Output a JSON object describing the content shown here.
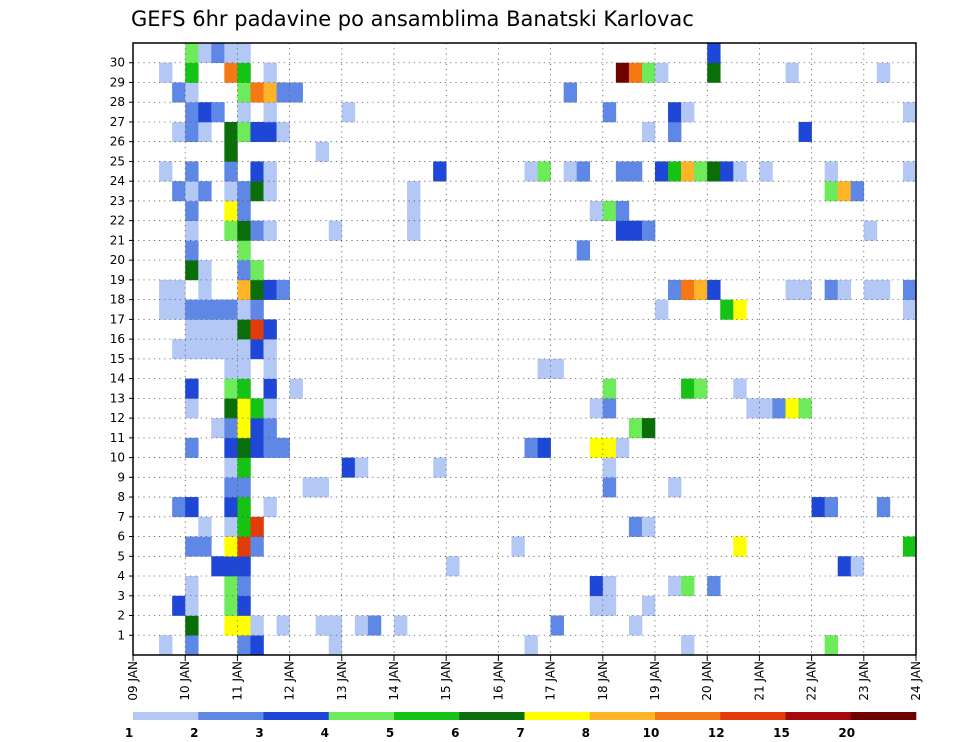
{
  "chart_data": {
    "type": "heatmap",
    "title": "GEFS 6hr padavine po ansamblima Banatski Karlovac",
    "xlabel": "",
    "ylabel": "",
    "x_tick_labels": [
      "09 JAN",
      "10 JAN",
      "11 JAN",
      "12 JAN",
      "13 JAN",
      "14 JAN",
      "15 JAN",
      "16 JAN",
      "17 JAN",
      "18 JAN",
      "19 JAN",
      "20 JAN",
      "21 JAN",
      "22 JAN",
      "23 JAN",
      "24 JAN"
    ],
    "y_tick_labels": [
      "1",
      "2",
      "3",
      "4",
      "5",
      "6",
      "7",
      "8",
      "9",
      "10",
      "11",
      "12",
      "13",
      "14",
      "15",
      "16",
      "17",
      "18",
      "19",
      "20",
      "21",
      "22",
      "23",
      "24",
      "25",
      "26",
      "27",
      "28",
      "29",
      "30"
    ],
    "time_steps_per_day": 4,
    "grid": true,
    "colorbar": {
      "placement": "bottom",
      "levels": [
        "1",
        "2",
        "3",
        "4",
        "5",
        "6",
        "7",
        "8",
        "10",
        "12",
        "15",
        "20"
      ],
      "colors": [
        "#b4c8f5",
        "#5f87e6",
        "#1e46d7",
        "#6eeb5a",
        "#14c314",
        "#0a6e0a",
        "#ffff00",
        "#ffb428",
        "#f57814",
        "#e13c0a",
        "#a50a0a",
        "#6e0000"
      ]
    },
    "cells": [
      {
        "m": 0,
        "t": 2,
        "c": 0
      },
      {
        "m": 0,
        "t": 4,
        "c": 1
      },
      {
        "m": 0,
        "t": 8,
        "c": 1
      },
      {
        "m": 0,
        "t": 9,
        "c": 2
      },
      {
        "m": 0,
        "t": 15,
        "c": 0
      },
      {
        "m": 0,
        "t": 30,
        "c": 0
      },
      {
        "m": 0,
        "t": 42,
        "c": 0
      },
      {
        "m": 0,
        "t": 53,
        "c": 3
      },
      {
        "m": 0,
        "t": 66,
        "c": 0
      },
      {
        "m": 0,
        "t": 69,
        "c": 0
      },
      {
        "m": 1,
        "t": 4,
        "c": 5
      },
      {
        "m": 1,
        "t": 7,
        "c": 6
      },
      {
        "m": 1,
        "t": 8,
        "c": 6
      },
      {
        "m": 1,
        "t": 9,
        "c": 0
      },
      {
        "m": 1,
        "t": 11,
        "c": 0
      },
      {
        "m": 1,
        "t": 14,
        "c": 0
      },
      {
        "m": 1,
        "t": 15,
        "c": 0
      },
      {
        "m": 1,
        "t": 17,
        "c": 0
      },
      {
        "m": 1,
        "t": 18,
        "c": 1
      },
      {
        "m": 1,
        "t": 20,
        "c": 0
      },
      {
        "m": 1,
        "t": 32,
        "c": 1
      },
      {
        "m": 1,
        "t": 38,
        "c": 0
      },
      {
        "m": 2,
        "t": 3,
        "c": 2
      },
      {
        "m": 2,
        "t": 4,
        "c": 0
      },
      {
        "m": 2,
        "t": 7,
        "c": 3
      },
      {
        "m": 2,
        "t": 8,
        "c": 2
      },
      {
        "m": 2,
        "t": 35,
        "c": 0
      },
      {
        "m": 2,
        "t": 36,
        "c": 0
      },
      {
        "m": 2,
        "t": 39,
        "c": 0
      },
      {
        "m": 3,
        "t": 4,
        "c": 0
      },
      {
        "m": 3,
        "t": 7,
        "c": 3
      },
      {
        "m": 3,
        "t": 8,
        "c": 1
      },
      {
        "m": 3,
        "t": 35,
        "c": 2
      },
      {
        "m": 3,
        "t": 36,
        "c": 0
      },
      {
        "m": 3,
        "t": 41,
        "c": 0
      },
      {
        "m": 3,
        "t": 42,
        "c": 3
      },
      {
        "m": 3,
        "t": 44,
        "c": 1
      },
      {
        "m": 4,
        "t": 6,
        "c": 2
      },
      {
        "m": 4,
        "t": 7,
        "c": 2
      },
      {
        "m": 4,
        "t": 8,
        "c": 2
      },
      {
        "m": 4,
        "t": 24,
        "c": 0
      },
      {
        "m": 4,
        "t": 54,
        "c": 2
      },
      {
        "m": 4,
        "t": 55,
        "c": 0
      },
      {
        "m": 5,
        "t": 4,
        "c": 1
      },
      {
        "m": 5,
        "t": 5,
        "c": 1
      },
      {
        "m": 5,
        "t": 7,
        "c": 6
      },
      {
        "m": 5,
        "t": 8,
        "c": 9
      },
      {
        "m": 5,
        "t": 9,
        "c": 1
      },
      {
        "m": 5,
        "t": 29,
        "c": 0
      },
      {
        "m": 5,
        "t": 46,
        "c": 6
      },
      {
        "m": 5,
        "t": 59,
        "c": 4
      },
      {
        "m": 6,
        "t": 5,
        "c": 0
      },
      {
        "m": 6,
        "t": 7,
        "c": 0
      },
      {
        "m": 6,
        "t": 8,
        "c": 4
      },
      {
        "m": 6,
        "t": 9,
        "c": 9
      },
      {
        "m": 6,
        "t": 38,
        "c": 1
      },
      {
        "m": 6,
        "t": 39,
        "c": 0
      },
      {
        "m": 7,
        "t": 3,
        "c": 1
      },
      {
        "m": 7,
        "t": 4,
        "c": 2
      },
      {
        "m": 7,
        "t": 7,
        "c": 2
      },
      {
        "m": 7,
        "t": 8,
        "c": 4
      },
      {
        "m": 7,
        "t": 10,
        "c": 0
      },
      {
        "m": 7,
        "t": 52,
        "c": 2
      },
      {
        "m": 7,
        "t": 53,
        "c": 1
      },
      {
        "m": 7,
        "t": 57,
        "c": 1
      },
      {
        "m": 8,
        "t": 7,
        "c": 1
      },
      {
        "m": 8,
        "t": 8,
        "c": 1
      },
      {
        "m": 8,
        "t": 13,
        "c": 0
      },
      {
        "m": 8,
        "t": 14,
        "c": 0
      },
      {
        "m": 8,
        "t": 36,
        "c": 1
      },
      {
        "m": 8,
        "t": 41,
        "c": 0
      },
      {
        "m": 9,
        "t": 7,
        "c": 0
      },
      {
        "m": 9,
        "t": 8,
        "c": 4
      },
      {
        "m": 9,
        "t": 16,
        "c": 2
      },
      {
        "m": 9,
        "t": 17,
        "c": 0
      },
      {
        "m": 9,
        "t": 23,
        "c": 0
      },
      {
        "m": 9,
        "t": 36,
        "c": 0
      },
      {
        "m": 10,
        "t": 4,
        "c": 1
      },
      {
        "m": 10,
        "t": 7,
        "c": 2
      },
      {
        "m": 10,
        "t": 8,
        "c": 5
      },
      {
        "m": 10,
        "t": 9,
        "c": 2
      },
      {
        "m": 10,
        "t": 10,
        "c": 1
      },
      {
        "m": 10,
        "t": 11,
        "c": 1
      },
      {
        "m": 10,
        "t": 30,
        "c": 1
      },
      {
        "m": 10,
        "t": 31,
        "c": 2
      },
      {
        "m": 10,
        "t": 35,
        "c": 6
      },
      {
        "m": 10,
        "t": 36,
        "c": 6
      },
      {
        "m": 10,
        "t": 37,
        "c": 0
      },
      {
        "m": 11,
        "t": 6,
        "c": 0
      },
      {
        "m": 11,
        "t": 7,
        "c": 1
      },
      {
        "m": 11,
        "t": 8,
        "c": 6
      },
      {
        "m": 11,
        "t": 9,
        "c": 2
      },
      {
        "m": 11,
        "t": 10,
        "c": 1
      },
      {
        "m": 11,
        "t": 38,
        "c": 3
      },
      {
        "m": 11,
        "t": 39,
        "c": 5
      },
      {
        "m": 12,
        "t": 4,
        "c": 0
      },
      {
        "m": 12,
        "t": 7,
        "c": 5
      },
      {
        "m": 12,
        "t": 8,
        "c": 6
      },
      {
        "m": 12,
        "t": 9,
        "c": 4
      },
      {
        "m": 12,
        "t": 10,
        "c": 0
      },
      {
        "m": 12,
        "t": 35,
        "c": 0
      },
      {
        "m": 12,
        "t": 36,
        "c": 1
      },
      {
        "m": 12,
        "t": 47,
        "c": 0
      },
      {
        "m": 12,
        "t": 48,
        "c": 0
      },
      {
        "m": 12,
        "t": 49,
        "c": 1
      },
      {
        "m": 12,
        "t": 50,
        "c": 6
      },
      {
        "m": 12,
        "t": 51,
        "c": 3
      },
      {
        "m": 13,
        "t": 4,
        "c": 2
      },
      {
        "m": 13,
        "t": 7,
        "c": 3
      },
      {
        "m": 13,
        "t": 8,
        "c": 4
      },
      {
        "m": 13,
        "t": 10,
        "c": 2
      },
      {
        "m": 13,
        "t": 12,
        "c": 0
      },
      {
        "m": 13,
        "t": 36,
        "c": 3
      },
      {
        "m": 13,
        "t": 42,
        "c": 4
      },
      {
        "m": 13,
        "t": 43,
        "c": 3
      },
      {
        "m": 13,
        "t": 46,
        "c": 0
      },
      {
        "m": 14,
        "t": 7,
        "c": 0
      },
      {
        "m": 14,
        "t": 8,
        "c": 0
      },
      {
        "m": 14,
        "t": 10,
        "c": 0
      },
      {
        "m": 14,
        "t": 31,
        "c": 0
      },
      {
        "m": 14,
        "t": 32,
        "c": 0
      },
      {
        "m": 15,
        "t": 3,
        "c": 0
      },
      {
        "m": 15,
        "t": 4,
        "c": 0
      },
      {
        "m": 15,
        "t": 5,
        "c": 0
      },
      {
        "m": 15,
        "t": 6,
        "c": 0
      },
      {
        "m": 15,
        "t": 7,
        "c": 0
      },
      {
        "m": 15,
        "t": 8,
        "c": 0
      },
      {
        "m": 15,
        "t": 9,
        "c": 2
      },
      {
        "m": 15,
        "t": 10,
        "c": 0
      },
      {
        "m": 16,
        "t": 4,
        "c": 0
      },
      {
        "m": 16,
        "t": 5,
        "c": 0
      },
      {
        "m": 16,
        "t": 6,
        "c": 0
      },
      {
        "m": 16,
        "t": 7,
        "c": 0
      },
      {
        "m": 16,
        "t": 8,
        "c": 5
      },
      {
        "m": 16,
        "t": 9,
        "c": 9
      },
      {
        "m": 16,
        "t": 10,
        "c": 2
      },
      {
        "m": 17,
        "t": 2,
        "c": 0
      },
      {
        "m": 17,
        "t": 3,
        "c": 0
      },
      {
        "m": 17,
        "t": 4,
        "c": 1
      },
      {
        "m": 17,
        "t": 5,
        "c": 1
      },
      {
        "m": 17,
        "t": 6,
        "c": 1
      },
      {
        "m": 17,
        "t": 7,
        "c": 1
      },
      {
        "m": 17,
        "t": 8,
        "c": 0
      },
      {
        "m": 17,
        "t": 9,
        "c": 1
      },
      {
        "m": 17,
        "t": 40,
        "c": 0
      },
      {
        "m": 17,
        "t": 45,
        "c": 4
      },
      {
        "m": 17,
        "t": 46,
        "c": 6
      },
      {
        "m": 17,
        "t": 59,
        "c": 0
      },
      {
        "m": 18,
        "t": 2,
        "c": 0
      },
      {
        "m": 18,
        "t": 3,
        "c": 0
      },
      {
        "m": 18,
        "t": 5,
        "c": 0
      },
      {
        "m": 18,
        "t": 8,
        "c": 7
      },
      {
        "m": 18,
        "t": 9,
        "c": 5
      },
      {
        "m": 18,
        "t": 10,
        "c": 2
      },
      {
        "m": 18,
        "t": 11,
        "c": 1
      },
      {
        "m": 18,
        "t": 41,
        "c": 1
      },
      {
        "m": 18,
        "t": 42,
        "c": 8
      },
      {
        "m": 18,
        "t": 43,
        "c": 7
      },
      {
        "m": 18,
        "t": 44,
        "c": 2
      },
      {
        "m": 18,
        "t": 50,
        "c": 0
      },
      {
        "m": 18,
        "t": 51,
        "c": 0
      },
      {
        "m": 18,
        "t": 53,
        "c": 1
      },
      {
        "m": 18,
        "t": 54,
        "c": 0
      },
      {
        "m": 18,
        "t": 56,
        "c": 0
      },
      {
        "m": 18,
        "t": 57,
        "c": 0
      },
      {
        "m": 18,
        "t": 59,
        "c": 1
      },
      {
        "m": 19,
        "t": 4,
        "c": 5
      },
      {
        "m": 19,
        "t": 5,
        "c": 0
      },
      {
        "m": 19,
        "t": 8,
        "c": 1
      },
      {
        "m": 19,
        "t": 9,
        "c": 3
      },
      {
        "m": 20,
        "t": 4,
        "c": 1
      },
      {
        "m": 20,
        "t": 8,
        "c": 3
      },
      {
        "m": 20,
        "t": 34,
        "c": 1
      },
      {
        "m": 21,
        "t": 4,
        "c": 0
      },
      {
        "m": 21,
        "t": 7,
        "c": 3
      },
      {
        "m": 21,
        "t": 8,
        "c": 5
      },
      {
        "m": 21,
        "t": 9,
        "c": 1
      },
      {
        "m": 21,
        "t": 10,
        "c": 0
      },
      {
        "m": 21,
        "t": 15,
        "c": 0
      },
      {
        "m": 21,
        "t": 21,
        "c": 0
      },
      {
        "m": 21,
        "t": 37,
        "c": 2
      },
      {
        "m": 21,
        "t": 38,
        "c": 2
      },
      {
        "m": 21,
        "t": 39,
        "c": 1
      },
      {
        "m": 21,
        "t": 56,
        "c": 0
      },
      {
        "m": 22,
        "t": 4,
        "c": 1
      },
      {
        "m": 22,
        "t": 7,
        "c": 6
      },
      {
        "m": 22,
        "t": 8,
        "c": 1
      },
      {
        "m": 22,
        "t": 21,
        "c": 0
      },
      {
        "m": 22,
        "t": 35,
        "c": 0
      },
      {
        "m": 22,
        "t": 36,
        "c": 3
      },
      {
        "m": 22,
        "t": 37,
        "c": 1
      },
      {
        "m": 23,
        "t": 3,
        "c": 1
      },
      {
        "m": 23,
        "t": 4,
        "c": 0
      },
      {
        "m": 23,
        "t": 5,
        "c": 1
      },
      {
        "m": 23,
        "t": 7,
        "c": 0
      },
      {
        "m": 23,
        "t": 8,
        "c": 1
      },
      {
        "m": 23,
        "t": 9,
        "c": 5
      },
      {
        "m": 23,
        "t": 10,
        "c": 0
      },
      {
        "m": 23,
        "t": 21,
        "c": 0
      },
      {
        "m": 23,
        "t": 53,
        "c": 3
      },
      {
        "m": 23,
        "t": 54,
        "c": 7
      },
      {
        "m": 23,
        "t": 55,
        "c": 1
      },
      {
        "m": 24,
        "t": 2,
        "c": 0
      },
      {
        "m": 24,
        "t": 4,
        "c": 1
      },
      {
        "m": 24,
        "t": 7,
        "c": 1
      },
      {
        "m": 24,
        "t": 9,
        "c": 2
      },
      {
        "m": 24,
        "t": 10,
        "c": 0
      },
      {
        "m": 24,
        "t": 23,
        "c": 2
      },
      {
        "m": 24,
        "t": 30,
        "c": 0
      },
      {
        "m": 24,
        "t": 31,
        "c": 3
      },
      {
        "m": 24,
        "t": 33,
        "c": 0
      },
      {
        "m": 24,
        "t": 34,
        "c": 1
      },
      {
        "m": 24,
        "t": 37,
        "c": 1
      },
      {
        "m": 24,
        "t": 38,
        "c": 1
      },
      {
        "m": 24,
        "t": 40,
        "c": 2
      },
      {
        "m": 24,
        "t": 41,
        "c": 4
      },
      {
        "m": 24,
        "t": 42,
        "c": 7
      },
      {
        "m": 24,
        "t": 43,
        "c": 3
      },
      {
        "m": 24,
        "t": 44,
        "c": 5
      },
      {
        "m": 24,
        "t": 45,
        "c": 2
      },
      {
        "m": 24,
        "t": 46,
        "c": 0
      },
      {
        "m": 24,
        "t": 48,
        "c": 0
      },
      {
        "m": 24,
        "t": 53,
        "c": 0
      },
      {
        "m": 24,
        "t": 59,
        "c": 0
      },
      {
        "m": 25,
        "t": 7,
        "c": 5
      },
      {
        "m": 25,
        "t": 14,
        "c": 0
      },
      {
        "m": 26,
        "t": 3,
        "c": 0
      },
      {
        "m": 26,
        "t": 4,
        "c": 1
      },
      {
        "m": 26,
        "t": 5,
        "c": 0
      },
      {
        "m": 26,
        "t": 7,
        "c": 5
      },
      {
        "m": 26,
        "t": 8,
        "c": 3
      },
      {
        "m": 26,
        "t": 9,
        "c": 2
      },
      {
        "m": 26,
        "t": 10,
        "c": 2
      },
      {
        "m": 26,
        "t": 11,
        "c": 0
      },
      {
        "m": 26,
        "t": 39,
        "c": 0
      },
      {
        "m": 26,
        "t": 41,
        "c": 1
      },
      {
        "m": 26,
        "t": 51,
        "c": 2
      },
      {
        "m": 27,
        "t": 4,
        "c": 1
      },
      {
        "m": 27,
        "t": 5,
        "c": 2
      },
      {
        "m": 27,
        "t": 6,
        "c": 1
      },
      {
        "m": 27,
        "t": 8,
        "c": 0
      },
      {
        "m": 27,
        "t": 10,
        "c": 0
      },
      {
        "m": 27,
        "t": 16,
        "c": 0
      },
      {
        "m": 27,
        "t": 36,
        "c": 1
      },
      {
        "m": 27,
        "t": 41,
        "c": 2
      },
      {
        "m": 27,
        "t": 42,
        "c": 0
      },
      {
        "m": 27,
        "t": 59,
        "c": 0
      },
      {
        "m": 28,
        "t": 3,
        "c": 1
      },
      {
        "m": 28,
        "t": 4,
        "c": 0
      },
      {
        "m": 28,
        "t": 8,
        "c": 3
      },
      {
        "m": 28,
        "t": 9,
        "c": 8
      },
      {
        "m": 28,
        "t": 10,
        "c": 7
      },
      {
        "m": 28,
        "t": 11,
        "c": 1
      },
      {
        "m": 28,
        "t": 12,
        "c": 1
      },
      {
        "m": 28,
        "t": 33,
        "c": 1
      },
      {
        "m": 29,
        "t": 2,
        "c": 0
      },
      {
        "m": 29,
        "t": 4,
        "c": 4
      },
      {
        "m": 29,
        "t": 7,
        "c": 8
      },
      {
        "m": 29,
        "t": 8,
        "c": 4
      },
      {
        "m": 29,
        "t": 10,
        "c": 0
      },
      {
        "m": 29,
        "t": 37,
        "c": 11
      },
      {
        "m": 29,
        "t": 38,
        "c": 8
      },
      {
        "m": 29,
        "t": 39,
        "c": 3
      },
      {
        "m": 29,
        "t": 40,
        "c": 0
      },
      {
        "m": 29,
        "t": 44,
        "c": 5
      },
      {
        "m": 29,
        "t": 50,
        "c": 0
      },
      {
        "m": 29,
        "t": 57,
        "c": 0
      },
      {
        "m": 30,
        "t": 4,
        "c": 3
      },
      {
        "m": 30,
        "t": 5,
        "c": 0
      },
      {
        "m": 30,
        "t": 6,
        "c": 1
      },
      {
        "m": 30,
        "t": 7,
        "c": 0
      },
      {
        "m": 30,
        "t": 8,
        "c": 0
      },
      {
        "m": 30,
        "t": 44,
        "c": 2
      }
    ]
  }
}
